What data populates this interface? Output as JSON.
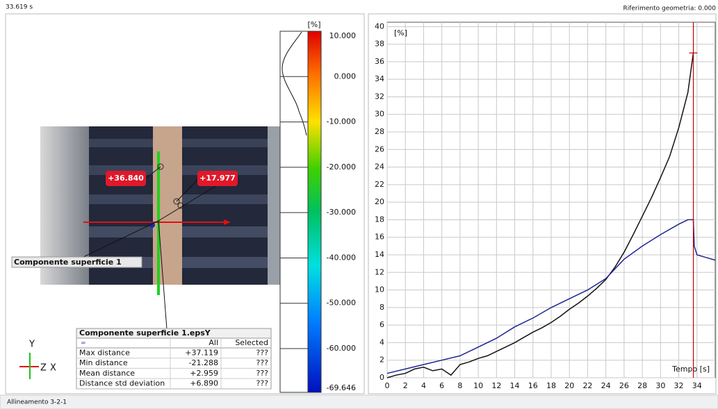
{
  "header": {
    "time": "33.619 s",
    "reference": "Riferimento geometria: 0.000"
  },
  "viewport": {
    "point_labels": [
      "+36.840",
      "+17.977"
    ],
    "component_label": "Componente superficie 1",
    "axes": {
      "y": "Y",
      "z": "Z",
      "x": "X"
    }
  },
  "colorbar": {
    "unit": "[%]",
    "clim": [
      -69.646,
      10
    ],
    "ticks": [
      {
        "value": 10,
        "label": "10.000"
      },
      {
        "value": 0,
        "label": "0.000"
      },
      {
        "value": -10,
        "label": "-10.000"
      },
      {
        "value": -20,
        "label": "-20.000"
      },
      {
        "value": -30,
        "label": "-30.000"
      },
      {
        "value": -40,
        "label": "-40.000"
      },
      {
        "value": -50,
        "label": "-50.000"
      },
      {
        "value": -60,
        "label": "-60.000"
      },
      {
        "value": -69.646,
        "label": "-69.646"
      }
    ]
  },
  "table": {
    "title": "Componente superficie 1.epsY",
    "columns": [
      "All",
      "Selected"
    ],
    "rows": [
      [
        "Max distance",
        "+37.119",
        "???"
      ],
      [
        "Min distance",
        "-21.288",
        "???"
      ],
      [
        "Mean distance",
        "+2.959",
        "???"
      ],
      [
        "Distance std deviation",
        "+6.890",
        "???"
      ]
    ]
  },
  "chart_data": {
    "type": "line",
    "y_unit_label": "[%]",
    "x_label": "Tempo [s]",
    "xlim": [
      0,
      36
    ],
    "ylim": [
      0,
      40.5
    ],
    "xticks": [
      0,
      2,
      4,
      6,
      8,
      10,
      12,
      14,
      16,
      18,
      20,
      22,
      24,
      26,
      28,
      30,
      32,
      34
    ],
    "yticks": [
      0,
      2,
      4,
      6,
      8,
      10,
      12,
      14,
      16,
      18,
      20,
      22,
      24,
      26,
      28,
      30,
      32,
      34,
      36,
      38,
      40
    ],
    "grid": true,
    "cursor_x": 33.6,
    "cursor_y": 37,
    "cursor_color": "#c00000",
    "series": [
      {
        "color": "#111111",
        "x": [
          0,
          1,
          2,
          3,
          4,
          5,
          6,
          7,
          8,
          9,
          10,
          11,
          12,
          13,
          14,
          15,
          16,
          17,
          18,
          19,
          20,
          21,
          22,
          23,
          24,
          25,
          26,
          27,
          28,
          29,
          30,
          31,
          32,
          33,
          33.6
        ],
        "values": [
          0,
          0.3,
          0.5,
          1,
          1.2,
          0.8,
          1,
          0.3,
          1.5,
          1.8,
          2.2,
          2.5,
          3,
          3.5,
          4,
          4.6,
          5.2,
          5.7,
          6.3,
          7,
          7.8,
          8.5,
          9.3,
          10.2,
          11.2,
          12.6,
          14.3,
          16.3,
          18.4,
          20.5,
          22.8,
          25.2,
          28.5,
          32.5,
          37
        ]
      },
      {
        "color": "#1c2590",
        "x": [
          0,
          2,
          4,
          6,
          8,
          10,
          12,
          14,
          16,
          18,
          20,
          22,
          24,
          26,
          28,
          30,
          32,
          33,
          33.6,
          33.7,
          34,
          35,
          36
        ],
        "values": [
          0.5,
          1,
          1.5,
          2,
          2.5,
          3.5,
          4.5,
          5.8,
          6.8,
          8,
          9,
          10,
          11.3,
          13.5,
          15,
          16.3,
          17.5,
          18,
          18,
          15,
          14,
          13.7,
          13.4
        ]
      }
    ]
  },
  "status": "Allineamento 3-2-1"
}
